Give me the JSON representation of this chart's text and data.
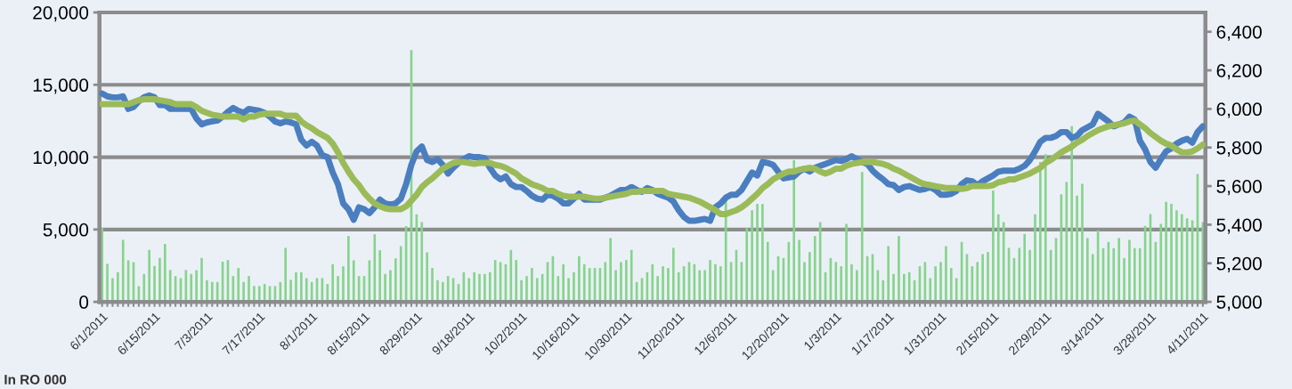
{
  "chart_data": {
    "type": "bar",
    "categories": [
      "6/1/2011",
      null,
      null,
      null,
      null,
      null,
      null,
      null,
      null,
      null,
      "6/15/2011",
      null,
      null,
      null,
      null,
      null,
      null,
      null,
      null,
      null,
      "7/3/2011",
      null,
      null,
      null,
      null,
      null,
      null,
      null,
      null,
      null,
      "7/17/2011",
      null,
      null,
      null,
      null,
      null,
      null,
      null,
      null,
      null,
      "8/1/2011",
      null,
      null,
      null,
      null,
      null,
      null,
      null,
      null,
      null,
      "8/15/2011",
      null,
      null,
      null,
      null,
      null,
      null,
      null,
      null,
      null,
      "8/29/2011",
      null,
      null,
      null,
      null,
      null,
      null,
      null,
      null,
      null,
      "9/18/2011",
      null,
      null,
      null,
      null,
      null,
      null,
      null,
      null,
      null,
      "10/2/2011",
      null,
      null,
      null,
      null,
      null,
      null,
      null,
      null,
      null,
      "10/16/2011",
      null,
      null,
      null,
      null,
      null,
      null,
      null,
      null,
      null,
      "10/30/2011",
      null,
      null,
      null,
      null,
      null,
      null,
      null,
      null,
      null,
      "11/20/2011",
      null,
      null,
      null,
      null,
      null,
      null,
      null,
      null,
      null,
      "12/6/2011",
      null,
      null,
      null,
      null,
      null,
      null,
      null,
      null,
      null,
      "12/20/2011",
      null,
      null,
      null,
      null,
      null,
      null,
      null,
      null,
      null,
      "1/3/2011",
      null,
      null,
      null,
      null,
      null,
      null,
      null,
      null,
      null,
      "1/17/2011",
      null,
      null,
      null,
      null,
      null,
      null,
      null,
      null,
      null,
      "1/31/2011",
      null,
      null,
      null,
      null,
      null,
      null,
      null,
      null,
      null,
      "2/15/2011",
      null,
      null,
      null,
      null,
      null,
      null,
      null,
      null,
      null,
      "2/29/2011",
      null,
      null,
      null,
      null,
      null,
      null,
      null,
      null,
      null,
      "3/14/2011",
      null,
      null,
      null,
      null,
      null,
      null,
      null,
      null,
      null,
      "3/28/2011",
      null,
      null,
      null,
      null,
      null,
      null,
      null,
      null,
      null,
      "4/11/2011"
    ],
    "series": [
      {
        "color": "#86d48b",
        "values": [
          5100,
          2620,
          1640,
          2050,
          4280,
          2870,
          2750,
          1090,
          1930,
          3590,
          2480,
          3030,
          4000,
          2210,
          1780,
          1640,
          2210,
          1930,
          2190,
          3030,
          1500,
          1370,
          1370,
          2770,
          2890,
          1780,
          2340,
          1370,
          1780,
          1090,
          1090,
          1230,
          1090,
          1090,
          1370,
          3730,
          1520,
          2050,
          2050,
          1640,
          1370,
          1640,
          1640,
          1230,
          2600,
          1780,
          2460,
          4550,
          2870,
          1780,
          1780,
          2870,
          4670,
          3570,
          1930,
          2190,
          3010,
          3850,
          5230,
          17400,
          6050,
          5510,
          3420,
          2340,
          1500,
          1370,
          1780,
          1640,
          1230,
          2050,
          1640,
          2050,
          1930,
          1930,
          2050,
          2890,
          2750,
          2600,
          3590,
          2890,
          1500,
          1780,
          2340,
          1640,
          1930,
          2750,
          3160,
          1780,
          2600,
          1640,
          2050,
          3160,
          2600,
          2340,
          2340,
          2340,
          2750,
          4410,
          2190,
          2750,
          2890,
          3590,
          1370,
          1640,
          2050,
          2600,
          1780,
          2460,
          2340,
          3730,
          2050,
          2460,
          2750,
          2600,
          2190,
          2190,
          2890,
          2600,
          2460,
          7420,
          2750,
          3590,
          2750,
          5100,
          6330,
          6770,
          6770,
          4140,
          2190,
          3160,
          3030,
          4140,
          9780,
          4280,
          2750,
          3440,
          4550,
          5510,
          2050,
          3030,
          2750,
          2460,
          5390,
          2600,
          2190,
          8980,
          3160,
          3300,
          2190,
          1500,
          3850,
          1930,
          4550,
          1930,
          2050,
          1500,
          2460,
          2750,
          1640,
          2460,
          2750,
          3850,
          2340,
          1640,
          4140,
          3300,
          2460,
          2750,
          3300,
          3440,
          7690,
          6050,
          5510,
          3730,
          3030,
          3730,
          4690,
          3590,
          6050,
          9660,
          10210,
          3590,
          4410,
          7440,
          8280,
          12140,
          7340,
          8160,
          4410,
          3300,
          4960,
          3710,
          4140,
          3710,
          4410,
          3030,
          4280,
          3710,
          3710,
          5250,
          6070,
          4140,
          5390,
          6910,
          6770,
          6330,
          6070,
          5780,
          5640,
          8840,
          5510
        ]
      },
      {
        "type": "line",
        "axis": "y2",
        "color": "#4a7ebf",
        "values": [
          6080,
          6065,
          6060,
          6060,
          6065,
          6000,
          6010,
          6040,
          6060,
          6070,
          6060,
          6020,
          6020,
          6000,
          6000,
          6000,
          6000,
          6000,
          5950,
          5920,
          5930,
          5935,
          5940,
          5960,
          5985,
          6005,
          5990,
          5980,
          6000,
          5995,
          5990,
          5980,
          5960,
          5935,
          5925,
          5935,
          5930,
          5920,
          5840,
          5810,
          5830,
          5810,
          5760,
          5750,
          5670,
          5610,
          5510,
          5480,
          5425,
          5490,
          5480,
          5460,
          5490,
          5530,
          5510,
          5505,
          5510,
          5535,
          5610,
          5710,
          5780,
          5805,
          5735,
          5725,
          5740,
          5710,
          5665,
          5695,
          5720,
          5740,
          5755,
          5750,
          5750,
          5745,
          5695,
          5655,
          5635,
          5650,
          5610,
          5595,
          5595,
          5575,
          5550,
          5535,
          5530,
          5555,
          5550,
          5535,
          5510,
          5510,
          5535,
          5560,
          5530,
          5530,
          5530,
          5530,
          5540,
          5550,
          5565,
          5580,
          5580,
          5595,
          5580,
          5570,
          5590,
          5580,
          5560,
          5550,
          5540,
          5520,
          5475,
          5440,
          5420,
          5420,
          5425,
          5430,
          5420,
          5490,
          5510,
          5540,
          5555,
          5555,
          5580,
          5625,
          5670,
          5655,
          5725,
          5720,
          5710,
          5675,
          5640,
          5645,
          5650,
          5675,
          5690,
          5675,
          5695,
          5705,
          5715,
          5725,
          5735,
          5730,
          5740,
          5755,
          5740,
          5725,
          5715,
          5680,
          5655,
          5635,
          5610,
          5605,
          5580,
          5595,
          5600,
          5590,
          5580,
          5585,
          5595,
          5580,
          5555,
          5555,
          5560,
          5575,
          5610,
          5630,
          5625,
          5605,
          5625,
          5640,
          5655,
          5675,
          5680,
          5680,
          5680,
          5690,
          5705,
          5735,
          5780,
          5830,
          5850,
          5850,
          5860,
          5880,
          5880,
          5850,
          5860,
          5890,
          5905,
          5920,
          5975,
          5955,
          5935,
          5910,
          5920,
          5930,
          5960,
          5945,
          5835,
          5790,
          5725,
          5695,
          5740,
          5780,
          5795,
          5820,
          5835,
          5845,
          5825,
          5880,
          5910
        ]
      },
      {
        "type": "line",
        "axis": "y2",
        "color": "#9bbb59",
        "values": [
          6025,
          6025,
          6025,
          6025,
          6025,
          6025,
          6035,
          6045,
          6050,
          6050,
          6050,
          6045,
          6040,
          6035,
          6025,
          6025,
          6025,
          6025,
          6010,
          5990,
          5980,
          5970,
          5965,
          5960,
          5960,
          5960,
          5960,
          5945,
          5960,
          5960,
          5970,
          5975,
          5975,
          5975,
          5975,
          5965,
          5965,
          5965,
          5935,
          5915,
          5900,
          5880,
          5865,
          5850,
          5820,
          5775,
          5720,
          5675,
          5635,
          5605,
          5565,
          5535,
          5510,
          5495,
          5485,
          5480,
          5480,
          5480,
          5495,
          5525,
          5555,
          5595,
          5620,
          5640,
          5665,
          5690,
          5705,
          5720,
          5725,
          5725,
          5720,
          5715,
          5720,
          5720,
          5720,
          5710,
          5705,
          5695,
          5680,
          5665,
          5640,
          5625,
          5610,
          5600,
          5590,
          5575,
          5575,
          5560,
          5550,
          5545,
          5545,
          5545,
          5545,
          5540,
          5535,
          5535,
          5540,
          5545,
          5550,
          5555,
          5560,
          5570,
          5570,
          5575,
          5575,
          5575,
          5575,
          5575,
          5560,
          5555,
          5550,
          5545,
          5540,
          5530,
          5520,
          5505,
          5490,
          5475,
          5455,
          5455,
          5465,
          5475,
          5490,
          5510,
          5535,
          5560,
          5590,
          5610,
          5635,
          5650,
          5665,
          5675,
          5675,
          5685,
          5690,
          5695,
          5690,
          5675,
          5665,
          5675,
          5690,
          5690,
          5705,
          5715,
          5720,
          5725,
          5725,
          5725,
          5720,
          5715,
          5705,
          5690,
          5680,
          5665,
          5650,
          5635,
          5620,
          5610,
          5605,
          5600,
          5595,
          5590,
          5590,
          5590,
          5585,
          5590,
          5600,
          5600,
          5600,
          5600,
          5605,
          5620,
          5625,
          5635,
          5635,
          5645,
          5655,
          5665,
          5680,
          5695,
          5720,
          5735,
          5755,
          5775,
          5790,
          5805,
          5825,
          5840,
          5860,
          5875,
          5890,
          5900,
          5910,
          5915,
          5920,
          5925,
          5935,
          5940,
          5920,
          5900,
          5875,
          5855,
          5835,
          5820,
          5810,
          5790,
          5775,
          5775,
          5780,
          5795,
          5815
        ]
      }
    ],
    "ylim": [
      0,
      20000
    ],
    "yticks": [
      {
        "value": 0,
        "label": "0"
      },
      {
        "value": 5000,
        "label": "5,000"
      },
      {
        "value": 10000,
        "label": "10,000"
      },
      {
        "value": 15000,
        "label": "15,000"
      },
      {
        "value": 20000,
        "label": "20,000"
      }
    ],
    "y2lim": [
      5000,
      6500
    ],
    "y2ticks": [
      {
        "value": 5000,
        "label": "5,000"
      },
      {
        "value": 5200,
        "label": "5,200"
      },
      {
        "value": 5400,
        "label": "5,400"
      },
      {
        "value": 5600,
        "label": "5,600"
      },
      {
        "value": 5800,
        "label": "5,800"
      },
      {
        "value": 6000,
        "label": "6,000"
      },
      {
        "value": 6200,
        "label": "6,200"
      },
      {
        "value": 6400,
        "label": "6,400"
      }
    ],
    "grid": "y",
    "annotations": [
      "In RO 000"
    ]
  }
}
